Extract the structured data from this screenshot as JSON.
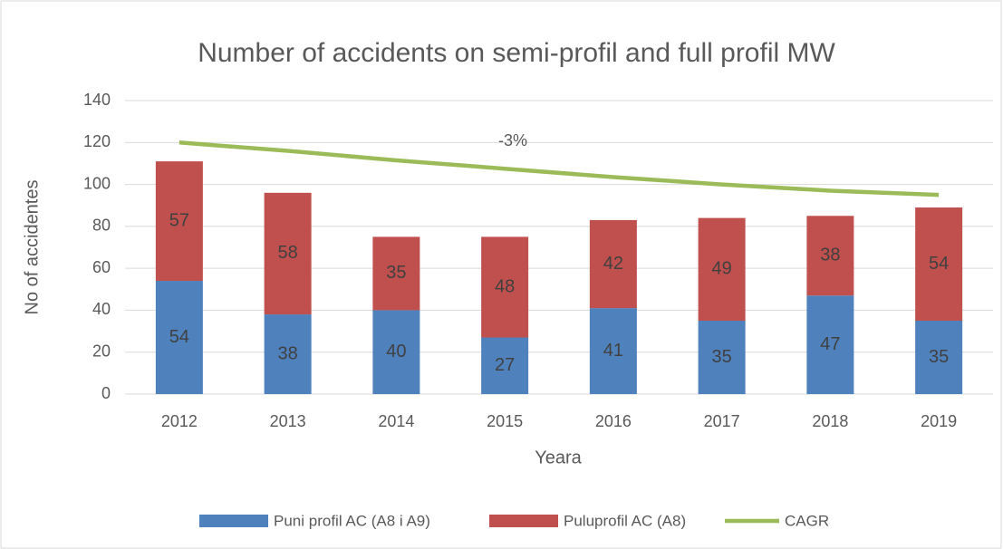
{
  "chart_data": {
    "type": "bar",
    "stacked": true,
    "title": "Number of accidents on semi-profil and full profil MW",
    "x_label": "Yeara",
    "y_label": "No of accidentes",
    "annotation": "-3%",
    "categories": [
      "2012",
      "2013",
      "2014",
      "2015",
      "2016",
      "2017",
      "2018",
      "2019"
    ],
    "series": [
      {
        "name": "Puni profil AC (A8 i A9)",
        "type": "bar",
        "color": "#4f81bd",
        "values": [
          54,
          38,
          40,
          27,
          41,
          35,
          47,
          35
        ]
      },
      {
        "name": "Puluprofil AC (A8)",
        "type": "bar",
        "color": "#c0504d",
        "values": [
          57,
          58,
          35,
          48,
          42,
          49,
          38,
          54
        ]
      },
      {
        "name": "CAGR",
        "type": "line",
        "color": "#9bbb59",
        "values": [
          120,
          116,
          111.5,
          107.5,
          103.5,
          100,
          97,
          95
        ]
      }
    ],
    "ylim": [
      0,
      140
    ],
    "yticks": [
      0,
      20,
      40,
      60,
      80,
      100,
      120,
      140
    ],
    "grid": true,
    "legend": "bottom"
  }
}
